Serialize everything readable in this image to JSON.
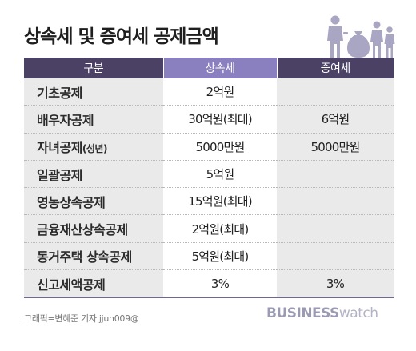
{
  "title": "상속세 및 증여세 공제금액",
  "chart_data": {
    "type": "table",
    "columns": [
      "구분",
      "상속세",
      "증여세"
    ],
    "rows": [
      {
        "category": "기초공제",
        "category_suffix": "",
        "inheritance": "2억원",
        "gift": ""
      },
      {
        "category": "배우자공제",
        "category_suffix": "",
        "inheritance": "30억원(최대)",
        "gift": "6억원"
      },
      {
        "category": "자녀공제",
        "category_suffix": "(성년)",
        "inheritance": "5000만원",
        "gift": "5000만원"
      },
      {
        "category": "일괄공제",
        "category_suffix": "",
        "inheritance": "5억원",
        "gift": ""
      },
      {
        "category": "영농상속공제",
        "category_suffix": "",
        "inheritance": "15억원(최대)",
        "gift": ""
      },
      {
        "category": "금융재산상속공제",
        "category_suffix": "",
        "inheritance": "2억원(최대)",
        "gift": ""
      },
      {
        "category": "동거주택 상속공제",
        "category_suffix": "",
        "inheritance": "5억원(최대)",
        "gift": ""
      },
      {
        "category": "신고세액공제",
        "category_suffix": "",
        "inheritance": "3%",
        "gift": "3%"
      }
    ]
  },
  "footer": {
    "credit": "그래픽=변혜준 기자 jjun009@",
    "brand_bold": "BUSINESS",
    "brand_light": "watch"
  },
  "colors": {
    "header_dark": "#4a4165",
    "header_accent": "#8a7fbf",
    "row_shade": "#eaeaea",
    "icon": "#a9a6c4"
  },
  "icons": {
    "header_graphic": "family-money-bag-icon"
  }
}
